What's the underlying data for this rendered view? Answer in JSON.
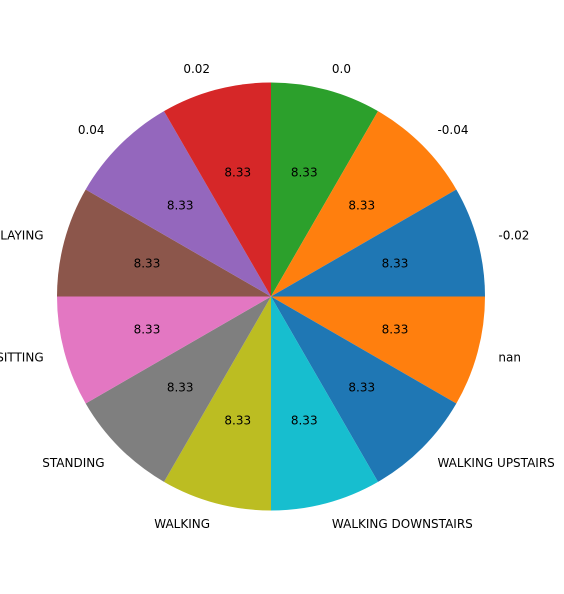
{
  "chart_data": {
    "type": "pie",
    "title": "",
    "start_angle_deg": 90,
    "direction": "clockwise",
    "slices": [
      {
        "label": "0.0",
        "value": 8.33,
        "pct_label": "8.33",
        "color": "#2ca02c"
      },
      {
        "label": "-0.04",
        "value": 8.33,
        "pct_label": "8.33",
        "color": "#ff7f0e"
      },
      {
        "label": "-0.02",
        "value": 8.33,
        "pct_label": "8.33",
        "color": "#1f77b4"
      },
      {
        "label": "nan",
        "value": 8.33,
        "pct_label": "8.33",
        "color": "#ff7f0e"
      },
      {
        "label": "WALKING UPSTAIRS",
        "value": 8.33,
        "pct_label": "8.33",
        "color": "#1f77b4"
      },
      {
        "label": "WALKING DOWNSTAIRS",
        "value": 8.33,
        "pct_label": "8.33",
        "color": "#17becf"
      },
      {
        "label": "WALKING",
        "value": 8.33,
        "pct_label": "8.33",
        "color": "#bcbd22"
      },
      {
        "label": "STANDING",
        "value": 8.33,
        "pct_label": "8.33",
        "color": "#7f7f7f"
      },
      {
        "label": "SITTING",
        "value": 8.33,
        "pct_label": "8.33",
        "color": "#e377c2"
      },
      {
        "label": "LAYING",
        "value": 8.33,
        "pct_label": "8.33",
        "color": "#8c564b"
      },
      {
        "label": "0.04",
        "value": 8.33,
        "pct_label": "8.33",
        "color": "#9467bd"
      },
      {
        "label": "0.02",
        "value": 8.33,
        "pct_label": "8.33",
        "color": "#d62728"
      }
    ]
  }
}
